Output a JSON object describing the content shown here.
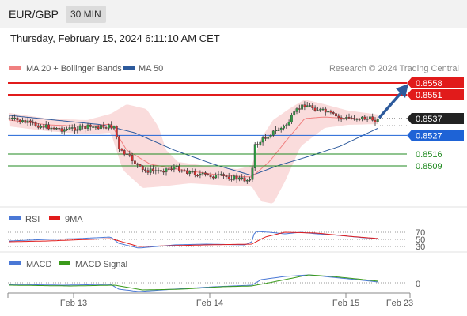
{
  "header": {
    "pair": "EUR/GBP",
    "timeframe": "30 MIN",
    "datetime": "Thursday, February 15, 2024 6:11:10 AM CET"
  },
  "legend": {
    "ma20": {
      "label": "MA 20 + Bollinger Bands",
      "color": "#f08080"
    },
    "ma50": {
      "label": "MA 50",
      "color": "#2d5a9c"
    },
    "credit": "Research © 2024 Trading Central"
  },
  "chart_data": {
    "type": "candlestick",
    "price_levels": [
      {
        "value": 0.8558,
        "label": "0.8558",
        "style": "resistance",
        "color": "#e11b1b"
      },
      {
        "value": 0.8551,
        "label": "0.8551",
        "style": "resistance",
        "color": "#e11b1b"
      },
      {
        "value": 0.8537,
        "label": "0.8537",
        "style": "last",
        "color": "#222222"
      },
      {
        "value": 0.8527,
        "label": "0.8527",
        "style": "pivot",
        "color": "#1e63d6"
      },
      {
        "value": 0.8516,
        "label": "0.8516",
        "style": "support",
        "color": "#1f8a1f"
      },
      {
        "value": 0.8509,
        "label": "0.8509",
        "style": "support",
        "color": "#1f8a1f"
      }
    ],
    "x_ticks": [
      "Feb 13",
      "Feb 14",
      "Feb 15",
      "Feb 23"
    ],
    "rsi": {
      "legend": [
        "RSI",
        "9MA"
      ],
      "levels": [
        "70",
        "50",
        "30"
      ],
      "colors": [
        "#4a78d6",
        "#e11b1b"
      ]
    },
    "macd": {
      "legend": [
        "MACD",
        "MACD Signal"
      ],
      "zero_label": "0",
      "colors": [
        "#4a78d6",
        "#3a9a1a"
      ]
    }
  }
}
